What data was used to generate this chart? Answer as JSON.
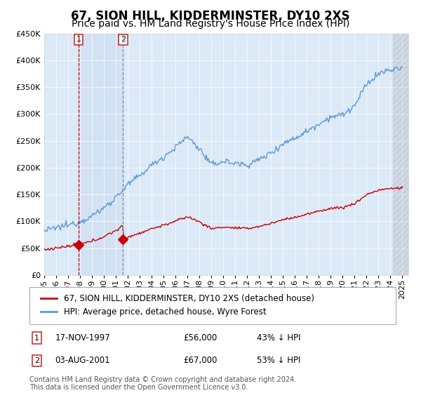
{
  "title": "67, SION HILL, KIDDERMINSTER, DY10 2XS",
  "subtitle": "Price paid vs. HM Land Registry's House Price Index (HPI)",
  "ylim": [
    0,
    450000
  ],
  "yticks": [
    0,
    50000,
    100000,
    150000,
    200000,
    250000,
    300000,
    350000,
    400000,
    450000
  ],
  "ytick_labels": [
    "£0",
    "£50K",
    "£100K",
    "£150K",
    "£200K",
    "£250K",
    "£300K",
    "£350K",
    "£400K",
    "£450K"
  ],
  "xlim_start": 1995.0,
  "xlim_end": 2025.5,
  "hpi_color": "#5b9bd5",
  "sale_color": "#cc0000",
  "background_color": "#ffffff",
  "plot_bg_color": "#dce9f7",
  "shade_color": "#c6d9f0",
  "legend_label_sale": "67, SION HILL, KIDDERMINSTER, DY10 2XS (detached house)",
  "legend_label_hpi": "HPI: Average price, detached house, Wyre Forest",
  "sale1_x": 1997.88,
  "sale1_y": 56000,
  "sale2_x": 2001.6,
  "sale2_y": 67000,
  "sale1_date": "17-NOV-1997",
  "sale1_price": "£56,000",
  "sale1_pct": "43% ↓ HPI",
  "sale2_date": "03-AUG-2001",
  "sale2_price": "£67,000",
  "sale2_pct": "53% ↓ HPI",
  "footnote": "Contains HM Land Registry data © Crown copyright and database right 2024.\nThis data is licensed under the Open Government Licence v3.0.",
  "title_fontsize": 12,
  "subtitle_fontsize": 10,
  "tick_fontsize": 8,
  "legend_fontsize": 8.5,
  "footnote_fontsize": 7
}
